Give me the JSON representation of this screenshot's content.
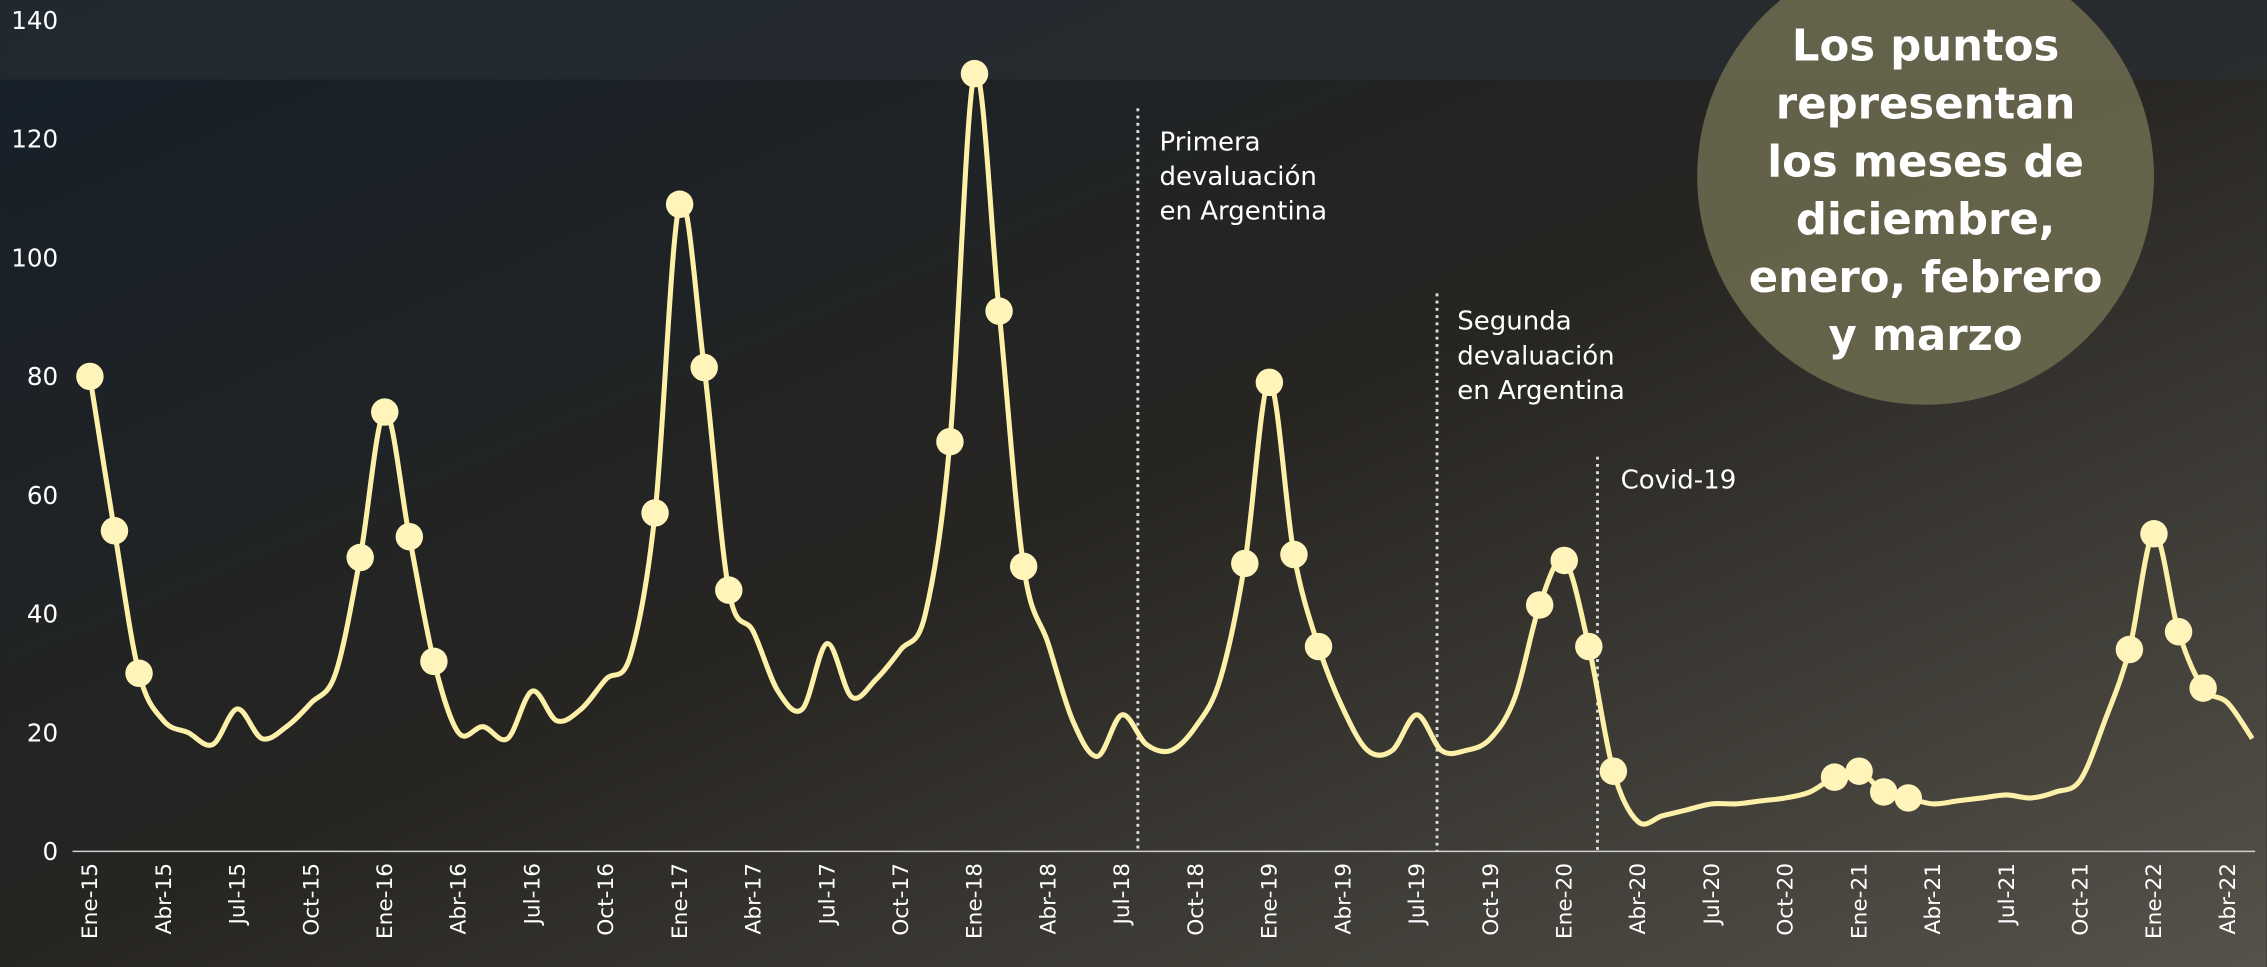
{
  "chart_data": {
    "type": "line",
    "categories": [
      "Ene-15",
      null,
      null,
      "Abr-15",
      null,
      null,
      "Jul-15",
      null,
      null,
      "Oct-15",
      null,
      null,
      "Ene-16",
      null,
      null,
      "Abr-16",
      null,
      null,
      "Jul-16",
      null,
      null,
      "Oct-16",
      null,
      null,
      "Ene-17",
      null,
      null,
      "Abr-17",
      null,
      null,
      "Jul-17",
      null,
      null,
      "Oct-17",
      null,
      null,
      "Ene-18",
      null,
      null,
      "Abr-18",
      null,
      null,
      "Jul-18",
      null,
      null,
      "Oct-18",
      null,
      null,
      "Ene-19",
      null,
      null,
      "Abr-19",
      null,
      null,
      "Jul-19",
      null,
      null,
      "Oct-19",
      null,
      null,
      "Ene-20",
      null,
      null,
      "Abr-20",
      null,
      null,
      "Jul-20",
      null,
      null,
      "Oct-20",
      null,
      null,
      "Ene-21",
      null,
      null,
      "Abr-21",
      null,
      null,
      "Jul-21",
      null,
      null,
      "Oct-21",
      null,
      null,
      "Ene-22",
      null,
      null,
      "Abr-22",
      null
    ],
    "series": [
      {
        "color": "#fdf1aa",
        "values": [
          80,
          54,
          30,
          22,
          20,
          18,
          24,
          19,
          21,
          25,
          30,
          49.5,
          74,
          53,
          32,
          20,
          21,
          19,
          27,
          22,
          24,
          29,
          33,
          57,
          109,
          81.5,
          44,
          37,
          27,
          24,
          35,
          26,
          29,
          34,
          40,
          69,
          131,
          91,
          48,
          35,
          22,
          16,
          23,
          18,
          17,
          21,
          29,
          48.5,
          79,
          50,
          34.5,
          24,
          17,
          17,
          23,
          17,
          17,
          19,
          26,
          41.5,
          49,
          34.5,
          13.5,
          5,
          6,
          7,
          8,
          8,
          8.5,
          9,
          10,
          12.5,
          13.5,
          10,
          9,
          8,
          8.5,
          9,
          9.5,
          9,
          10,
          12,
          22,
          34,
          53.5,
          37,
          27.5,
          25,
          19
        ]
      }
    ],
    "ylim": [
      0,
      140
    ],
    "yticks": [
      0,
      20,
      40,
      60,
      80,
      100,
      120,
      140
    ],
    "grid": false,
    "annotations": [
      {
        "text": [
          "Primera",
          "devaluación",
          "en Argentina"
        ]
      },
      {
        "text": [
          "Segunda",
          "devaluación",
          "en Argentina"
        ]
      },
      {
        "text": [
          "Covid-19"
        ]
      }
    ],
    "note": [
      "Los puntos",
      "representan",
      "los meses de",
      "diciembre,",
      "enero, febrero",
      "y marzo"
    ]
  }
}
